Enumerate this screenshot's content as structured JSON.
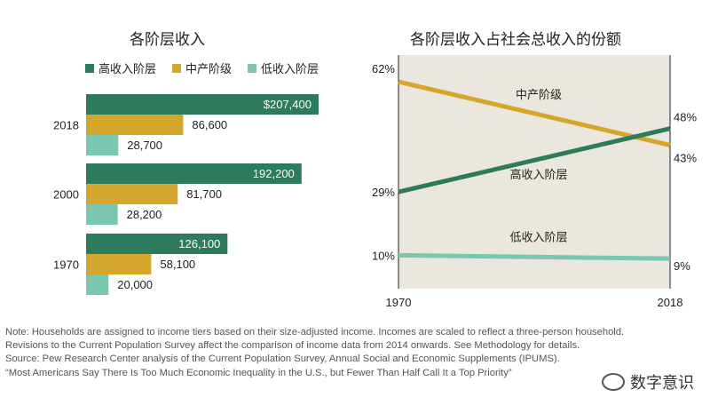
{
  "chart_data": [
    {
      "type": "bar",
      "title": "各阶层收入",
      "orientation": "horizontal",
      "categories": [
        "2018",
        "2000",
        "1970"
      ],
      "series": [
        {
          "name": "高收入阶层",
          "color": "#2e7a5c",
          "values": [
            207400,
            192200,
            126100
          ],
          "labels": [
            "$207,400",
            "192,200",
            "126,100"
          ]
        },
        {
          "name": "中产阶级",
          "color": "#d4a72c",
          "values": [
            86600,
            81700,
            58100
          ],
          "labels": [
            "86,600",
            "81,700",
            "58,100"
          ]
        },
        {
          "name": "低收入阶层",
          "color": "#7bc6b0",
          "values": [
            28700,
            28200,
            20000
          ],
          "labels": [
            "28,700",
            "28,200",
            "20,000"
          ]
        }
      ],
      "xlim": [
        0,
        207400
      ],
      "legend": "top"
    },
    {
      "type": "line",
      "title": "各阶层收入占社会总收入的份额",
      "x": [
        "1970",
        "2018"
      ],
      "ylim": [
        0,
        70
      ],
      "series": [
        {
          "name": "中产阶级",
          "color": "#d4a72c",
          "values": [
            62,
            43
          ],
          "labels": [
            "62%",
            "43%"
          ]
        },
        {
          "name": "高收入阶层",
          "color": "#2e7a5c",
          "values": [
            29,
            48
          ],
          "labels": [
            "29%",
            "48%"
          ]
        },
        {
          "name": "低收入阶层",
          "color": "#7bc6b0",
          "values": [
            10,
            9
          ],
          "labels": [
            "10%",
            "9%"
          ]
        }
      ]
    }
  ],
  "notes": [
    "Note: Households are assigned to income tiers based on their size-adjusted income. Incomes are scaled to reflect a three-person household.",
    "Revisions to the Current Population Survey affect the comparison of income data from 2014 onwards. See Methodology for details.",
    "Source: Pew Research Center analysis of the Current Population Survey, Annual Social and Economic Supplements (IPUMS).",
    "“Most Americans Say There Is Too Much Economic Inequality in the U.S., but Fewer Than Half Call It a Top Priority”"
  ],
  "watermark": "数字意识"
}
